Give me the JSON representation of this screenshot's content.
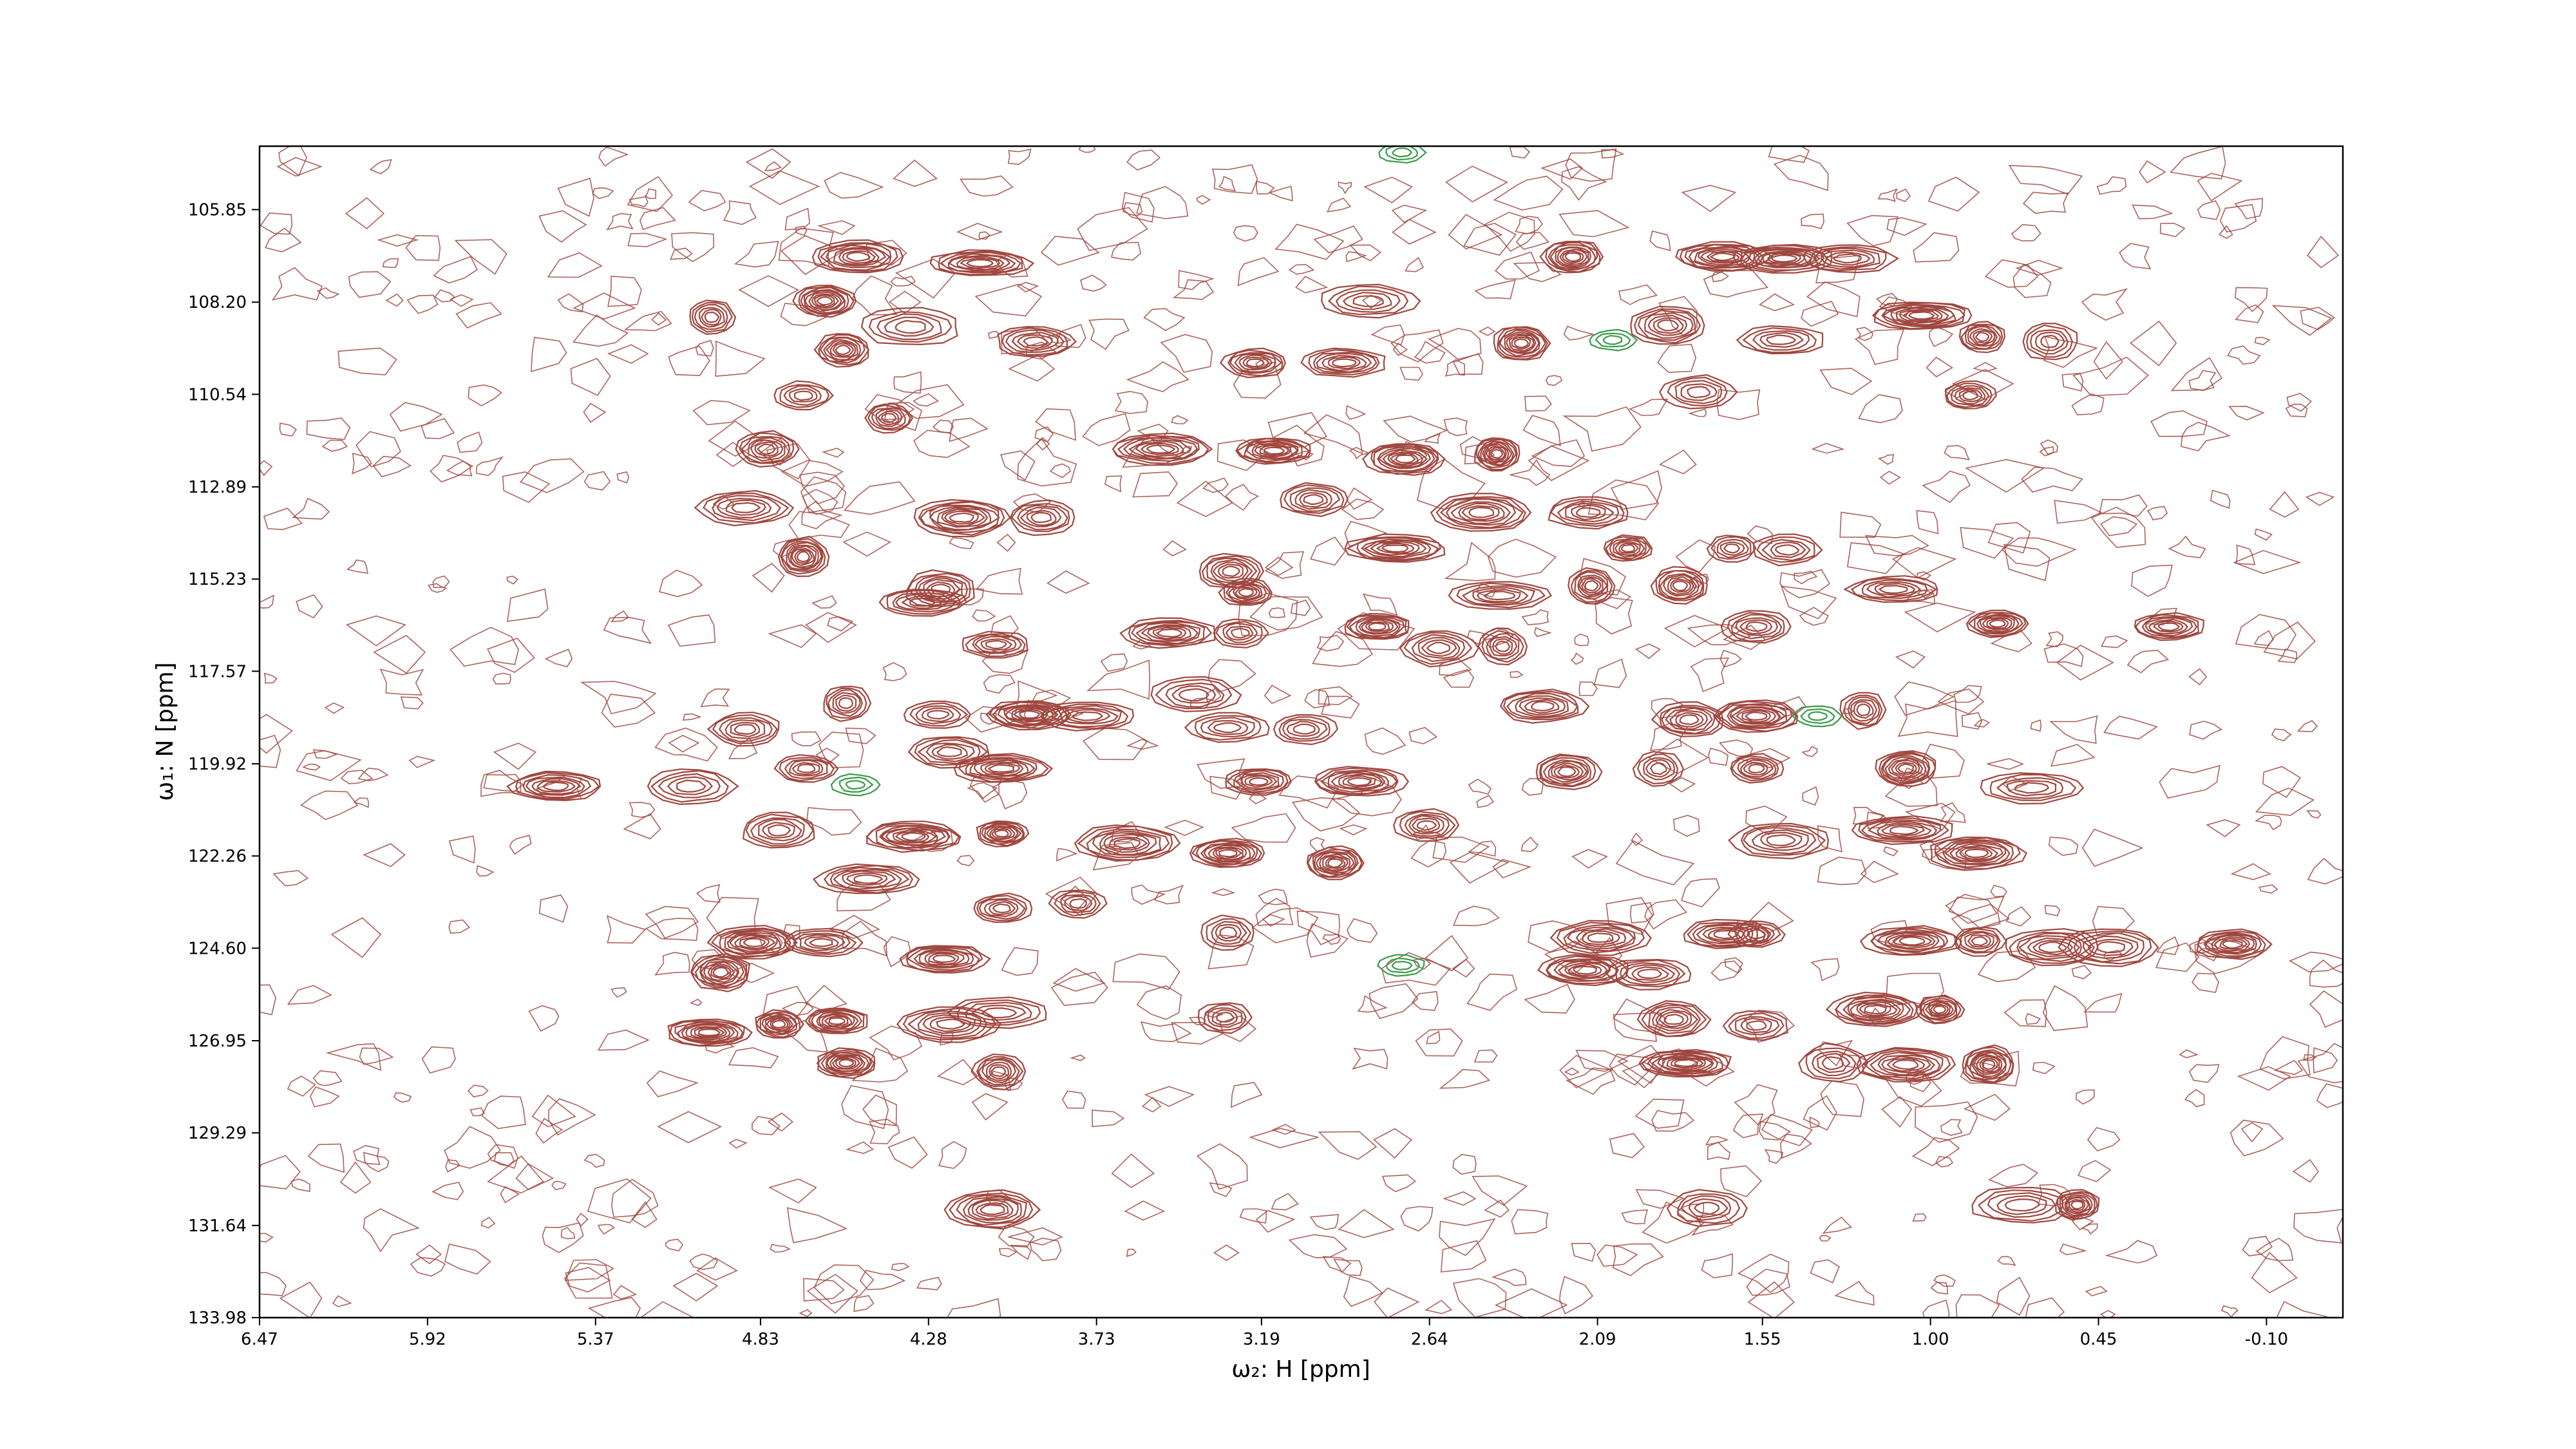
{
  "chart_data": {
    "type": "contour",
    "xlabel": "ω₂: H [ppm]",
    "ylabel": "ω₁: N [ppm]",
    "xlim": [
      6.47,
      -0.35
    ],
    "ylim": [
      133.98,
      104.24
    ],
    "xticks": [
      6.47,
      5.92,
      5.37,
      4.83,
      4.28,
      3.73,
      3.19,
      2.64,
      2.09,
      1.55,
      {
        "value": 1.0,
        "label": "1.00"
      },
      0.45,
      {
        "value": -0.1,
        "label": "-0.10"
      }
    ],
    "yticks": [
      105.85,
      {
        "value": 108.2,
        "label": "108.20"
      },
      110.54,
      112.89,
      115.23,
      117.57,
      119.92,
      122.26,
      {
        "value": 124.6,
        "label": "124.60"
      },
      126.95,
      129.29,
      131.64,
      133.98
    ],
    "color": "#a0473f",
    "negative_color": "#3a9a4a",
    "x": [
      4.51,
      4.11,
      4.62,
      4.34,
      3.93,
      4.56,
      4.99,
      2.84,
      2.34,
      3.21,
      2.92,
      2.17,
      1.68,
      1.86,
      1.48,
      1.27,
      1.49,
      1.03,
      0.83,
      0.61,
      0.87,
      1.76,
      4.69,
      4.41,
      4.81,
      3.52,
      3.15,
      2.72,
      2.42,
      3.02,
      4.17,
      3.91,
      4.88,
      4.69,
      2.75,
      2.47,
      2.12,
      1.99,
      1.65,
      1.47,
      1.12,
      2.11,
      1.82,
      2.41,
      3.29,
      3.24,
      4.24,
      4.3,
      4.06,
      3.49,
      3.26,
      2.81,
      2.61,
      2.4,
      1.57,
      0.78,
      0.22,
      4.88,
      4.55,
      4.25,
      3.95,
      3.76,
      3.41,
      3.3,
      3.05,
      2.27,
      1.79,
      1.22,
      1.57,
      4.68,
      4.21,
      4.04,
      5.5,
      5.06,
      4.77,
      4.33,
      4.04,
      3.63,
      3.2,
      2.87,
      2.65,
      2.19,
      1.89,
      1.57,
      1.08,
      0.67,
      1.49,
      1.09,
      0.85,
      3.3,
      2.95,
      4.48,
      4.04,
      3.79,
      3.3,
      2.08,
      1.67,
      1.57,
      1.06,
      0.84,
      0.6,
      0.41,
      0.01,
      4.96,
      4.85,
      4.63,
      2.13,
      1.92,
      4.23,
      5.0,
      4.77,
      4.58,
      4.21,
      4.05,
      3.31,
      1.84,
      1.57,
      1.18,
      0.97,
      4.55,
      4.05,
      1.8,
      1.32,
      1.08,
      0.81,
      4.07,
      1.73,
      0.7,
      0.52
    ],
    "y": [
      107.05,
      107.21,
      108.17,
      108.83,
      109.2,
      109.41,
      108.58,
      108.17,
      109.24,
      109.74,
      109.74,
      107.05,
      107.05,
      108.79,
      107.09,
      107.09,
      109.16,
      108.54,
      109.08,
      109.2,
      110.57,
      110.48,
      110.57,
      111.14,
      111.93,
      111.93,
      111.97,
      112.18,
      112.05,
      113.21,
      113.67,
      113.67,
      113.42,
      114.66,
      114.45,
      113.54,
      113.54,
      114.45,
      114.45,
      114.49,
      115.49,
      115.4,
      115.4,
      115.65,
      115.03,
      115.57,
      115.49,
      115.82,
      116.89,
      116.6,
      116.6,
      116.44,
      116.98,
      116.94,
      116.44,
      116.36,
      116.44,
      119.04,
      118.38,
      118.67,
      118.67,
      118.71,
      118.17,
      119.0,
      119.04,
      118.46,
      118.8,
      118.55,
      118.71,
      120.04,
      119.62,
      120.04,
      120.49,
      120.49,
      121.61,
      121.77,
      121.69,
      121.94,
      120.37,
      120.37,
      121.48,
      120.12,
      120.04,
      120.04,
      120.04,
      120.53,
      121.86,
      121.61,
      122.19,
      122.19,
      122.44,
      122.85,
      123.59,
      123.47,
      124.21,
      124.34,
      124.25,
      124.25,
      124.42,
      124.42,
      124.58,
      124.58,
      124.5,
      125.21,
      124.46,
      124.46,
      125.16,
      125.25,
      124.87,
      126.74,
      126.53,
      126.45,
      126.53,
      126.24,
      126.36,
      126.41,
      126.57,
      126.16,
      126.16,
      127.52,
      127.73,
      127.52,
      127.52,
      127.56,
      127.56,
      131.24,
      131.2,
      131.12,
      131.12
    ],
    "negative": {
      "x": [
        2.73,
        2.73,
        4.52,
        1.37,
        2.04
      ],
      "y": [
        104.4,
        125.04,
        120.45,
        118.71,
        109.16
      ]
    }
  }
}
